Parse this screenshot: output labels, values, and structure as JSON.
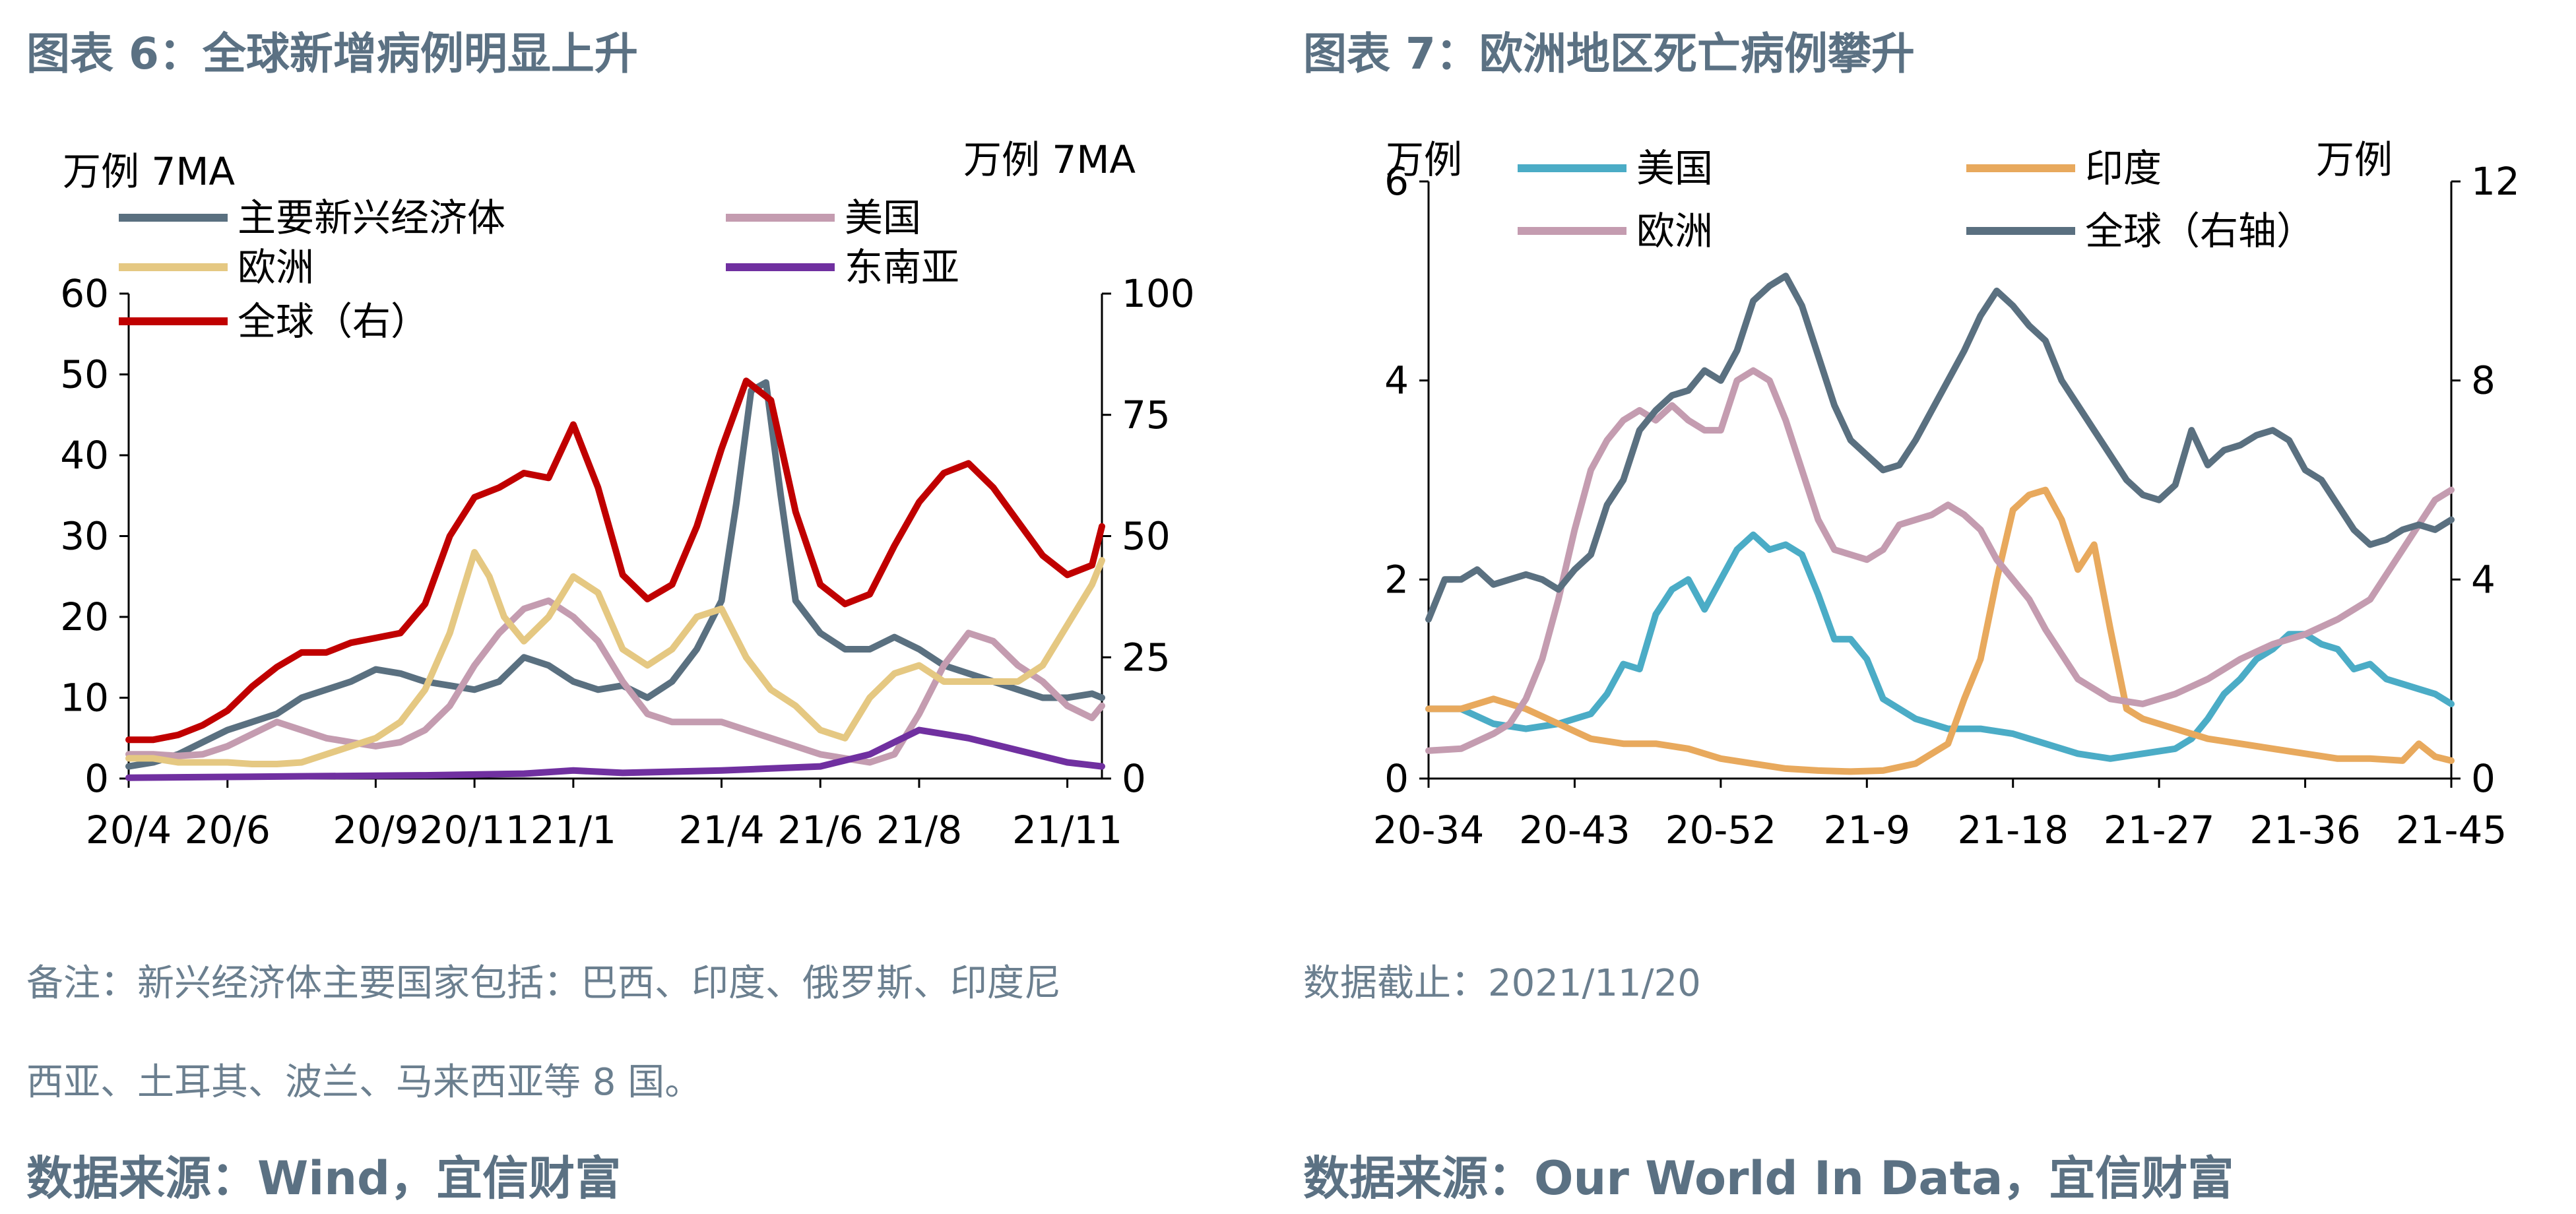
{
  "left": {
    "title": "图表 6：全球新增病例明显上升",
    "note_line1": "备注：新兴经济体主要国家包括：巴西、印度、俄罗斯、印度尼",
    "note_line2": "西亚、土耳其、波兰、马来西亚等 8 国。",
    "source": "数据来源：Wind，宜信财富"
  },
  "right": {
    "title": "图表 7：欧洲地区死亡病例攀升",
    "note": "数据截止：2021/11/20",
    "source": "数据来源：Our World In Data，宜信财富"
  },
  "chart_data": [
    {
      "type": "line",
      "left_unit": "万例 7MA",
      "right_unit": "万例 7MA",
      "ylim": [
        0,
        60
      ],
      "ylim_right": [
        0,
        100
      ],
      "yticks": [
        0,
        10,
        20,
        30,
        40,
        50,
        60
      ],
      "yticks_right": [
        0,
        25,
        50,
        75,
        100
      ],
      "xlim": [
        0,
        19.7
      ],
      "xticks": [
        {
          "label": "20/4",
          "pos": 0
        },
        {
          "label": "20/6",
          "pos": 2
        },
        {
          "label": "20/9",
          "pos": 5
        },
        {
          "label": "20/11",
          "pos": 7
        },
        {
          "label": "21/1",
          "pos": 9
        },
        {
          "label": "21/4",
          "pos": 12
        },
        {
          "label": "21/6",
          "pos": 14
        },
        {
          "label": "21/8",
          "pos": 16
        },
        {
          "label": "21/11",
          "pos": 19
        }
      ],
      "series": [
        {
          "name": "主要新兴经济体",
          "color": "#5a7080",
          "axis": "left",
          "x": [
            0,
            0.5,
            1,
            1.5,
            2,
            2.5,
            3,
            3.5,
            4,
            4.5,
            5,
            5.5,
            6,
            6.5,
            7,
            7.5,
            8,
            8.5,
            9,
            9.5,
            10,
            10.5,
            11,
            11.5,
            12,
            12.3,
            12.6,
            12.9,
            13.2,
            13.5,
            14,
            14.5,
            15,
            15.5,
            16,
            16.5,
            17,
            17.5,
            18,
            18.5,
            19,
            19.5,
            19.7
          ],
          "y": [
            1.5,
            2,
            3,
            4.5,
            6,
            7,
            8,
            10,
            11,
            12,
            13.5,
            13,
            12,
            11.5,
            11,
            12,
            15,
            14,
            12,
            11,
            11.5,
            10,
            12,
            16,
            22,
            34,
            48,
            49,
            35,
            22,
            18,
            16,
            16,
            17.5,
            16,
            14,
            13,
            12,
            11,
            10,
            10,
            10.5,
            10
          ]
        },
        {
          "name": "美国",
          "color": "#c49cb0",
          "axis": "left",
          "x": [
            0,
            0.5,
            1,
            1.5,
            2,
            2.5,
            3,
            3.5,
            4,
            4.5,
            5,
            5.5,
            6,
            6.5,
            7,
            7.5,
            8,
            8.5,
            9,
            9.5,
            10,
            10.5,
            11,
            11.5,
            12,
            12.5,
            13,
            13.5,
            14,
            14.5,
            15,
            15.5,
            16,
            16.5,
            17,
            17.5,
            18,
            18.5,
            19,
            19.5,
            19.7
          ],
          "y": [
            3,
            3,
            2.8,
            3,
            4,
            5.5,
            7,
            6,
            5,
            4.5,
            4,
            4.5,
            6,
            9,
            14,
            18,
            21,
            22,
            20,
            17,
            12,
            8,
            7,
            7,
            7,
            6,
            5,
            4,
            3,
            2.5,
            2,
            3,
            8,
            14,
            18,
            17,
            14,
            12,
            9,
            7.5,
            9
          ]
        },
        {
          "name": "欧洲",
          "color": "#e5c882",
          "axis": "left",
          "x": [
            0,
            0.5,
            1,
            1.5,
            2,
            2.5,
            3,
            3.5,
            4,
            4.5,
            5,
            5.5,
            6,
            6.5,
            7,
            7.3,
            7.6,
            8,
            8.5,
            9,
            9.5,
            10,
            10.5,
            11,
            11.5,
            12,
            12.5,
            13,
            13.5,
            14,
            14.5,
            15,
            15.5,
            16,
            16.5,
            17,
            17.5,
            18,
            18.5,
            19,
            19.5,
            19.7
          ],
          "y": [
            2.5,
            2.5,
            2,
            2,
            2,
            1.8,
            1.8,
            2,
            3,
            4,
            5,
            7,
            11,
            18,
            28,
            25,
            20,
            17,
            20,
            25,
            23,
            16,
            14,
            16,
            20,
            21,
            15,
            11,
            9,
            6,
            5,
            10,
            13,
            14,
            12,
            12,
            12,
            12,
            14,
            19,
            24,
            27
          ]
        },
        {
          "name": "东南亚",
          "color": "#7030a0",
          "axis": "left",
          "x": [
            0,
            2,
            4,
            6,
            8,
            9,
            10,
            12,
            14,
            15,
            15.5,
            16,
            16.5,
            17,
            18,
            19,
            19.7
          ],
          "y": [
            0.1,
            0.2,
            0.3,
            0.4,
            0.6,
            1,
            0.7,
            1,
            1.5,
            3,
            4.5,
            6,
            5.5,
            5,
            3.5,
            2,
            1.5
          ]
        },
        {
          "name": "全球（右）",
          "color": "#c00000",
          "axis": "right",
          "x": [
            0,
            0.5,
            1,
            1.5,
            2,
            2.5,
            3,
            3.5,
            4,
            4.5,
            5,
            5.5,
            6,
            6.5,
            7,
            7.5,
            8,
            8.5,
            9,
            9.5,
            10,
            10.5,
            11,
            11.5,
            12,
            12.5,
            13,
            13.5,
            14,
            14.5,
            15,
            15.5,
            16,
            16.5,
            17,
            17.5,
            18,
            18.5,
            19,
            19.5,
            19.7
          ],
          "y": [
            8,
            8,
            9,
            11,
            14,
            19,
            23,
            26,
            26,
            28,
            29,
            30,
            36,
            50,
            58,
            60,
            63,
            62,
            73,
            60,
            42,
            37,
            40,
            52,
            68,
            82,
            78,
            55,
            40,
            36,
            38,
            48,
            57,
            63,
            65,
            60,
            53,
            46,
            42,
            44,
            52
          ]
        }
      ]
    },
    {
      "type": "line",
      "left_unit": "万例",
      "right_unit": "万例",
      "ylim": [
        0,
        6
      ],
      "ylim_right": [
        0,
        12
      ],
      "yticks": [
        0,
        2,
        4,
        6
      ],
      "yticks_right": [
        0,
        4,
        8,
        12
      ],
      "xlim": [
        34,
        97
      ],
      "xticks": [
        {
          "label": "20-34",
          "pos": 34
        },
        {
          "label": "20-43",
          "pos": 43
        },
        {
          "label": "20-52",
          "pos": 52
        },
        {
          "label": "21-9",
          "pos": 61
        },
        {
          "label": "21-18",
          "pos": 70
        },
        {
          "label": "21-27",
          "pos": 79
        },
        {
          "label": "21-36",
          "pos": 88
        },
        {
          "label": "21-45",
          "pos": 97
        }
      ],
      "series": [
        {
          "name": "美国",
          "color": "#4bacc6",
          "axis": "left",
          "x": [
            34,
            36,
            38,
            40,
            42,
            43,
            44,
            45,
            46,
            47,
            48,
            49,
            50,
            51,
            52,
            53,
            54,
            55,
            56,
            57,
            58,
            59,
            60,
            61,
            62,
            63,
            64,
            65,
            66,
            68,
            70,
            72,
            74,
            76,
            78,
            80,
            81,
            82,
            83,
            84,
            85,
            86,
            87,
            88,
            89,
            90,
            91,
            92,
            93,
            94,
            95,
            96,
            97
          ],
          "y": [
            0.7,
            0.7,
            0.55,
            0.5,
            0.55,
            0.6,
            0.65,
            0.85,
            1.15,
            1.1,
            1.65,
            1.9,
            2.0,
            1.7,
            2.0,
            2.3,
            2.45,
            2.3,
            2.35,
            2.25,
            1.85,
            1.4,
            1.4,
            1.2,
            0.8,
            0.7,
            0.6,
            0.55,
            0.5,
            0.5,
            0.45,
            0.35,
            0.25,
            0.2,
            0.25,
            0.3,
            0.4,
            0.6,
            0.85,
            1.0,
            1.2,
            1.3,
            1.45,
            1.45,
            1.35,
            1.3,
            1.1,
            1.15,
            1.0,
            0.95,
            0.9,
            0.85,
            0.75
          ]
        },
        {
          "name": "印度",
          "color": "#e8a95d",
          "axis": "left",
          "x": [
            34,
            36,
            38,
            40,
            42,
            44,
            46,
            48,
            50,
            52,
            54,
            56,
            58,
            60,
            62,
            64,
            66,
            67,
            68,
            69,
            70,
            71,
            72,
            73,
            74,
            75,
            76,
            77,
            78,
            80,
            82,
            84,
            86,
            88,
            90,
            92,
            94,
            95,
            96,
            97
          ],
          "y": [
            0.7,
            0.7,
            0.8,
            0.7,
            0.55,
            0.4,
            0.35,
            0.35,
            0.3,
            0.2,
            0.15,
            0.1,
            0.08,
            0.07,
            0.08,
            0.15,
            0.35,
            0.8,
            1.2,
            2.0,
            2.7,
            2.85,
            2.9,
            2.6,
            2.1,
            2.35,
            1.5,
            0.7,
            0.6,
            0.5,
            0.4,
            0.35,
            0.3,
            0.25,
            0.2,
            0.2,
            0.18,
            0.35,
            0.22,
            0.18
          ]
        },
        {
          "name": "欧洲",
          "color": "#c49cb0",
          "axis": "left",
          "x": [
            34,
            36,
            38,
            39,
            40,
            41,
            42,
            43,
            44,
            45,
            46,
            47,
            48,
            49,
            50,
            51,
            52,
            53,
            54,
            55,
            56,
            57,
            58,
            59,
            60,
            61,
            62,
            63,
            64,
            65,
            66,
            67,
            68,
            69,
            70,
            71,
            72,
            74,
            76,
            78,
            80,
            82,
            84,
            86,
            88,
            90,
            92,
            94,
            96,
            97
          ],
          "y": [
            0.28,
            0.3,
            0.45,
            0.55,
            0.8,
            1.2,
            1.8,
            2.5,
            3.1,
            3.4,
            3.6,
            3.7,
            3.6,
            3.75,
            3.6,
            3.5,
            3.5,
            4.0,
            4.1,
            4.0,
            3.6,
            3.1,
            2.6,
            2.3,
            2.25,
            2.2,
            2.3,
            2.55,
            2.6,
            2.65,
            2.75,
            2.65,
            2.5,
            2.2,
            2.0,
            1.8,
            1.5,
            1.0,
            0.8,
            0.75,
            0.85,
            1.0,
            1.2,
            1.35,
            1.45,
            1.6,
            1.8,
            2.3,
            2.8,
            2.9
          ]
        },
        {
          "name": "全球（右轴）",
          "color": "#5a7080",
          "axis": "right",
          "x": [
            34,
            35,
            36,
            37,
            38,
            39,
            40,
            41,
            42,
            43,
            44,
            45,
            46,
            47,
            48,
            49,
            50,
            51,
            52,
            53,
            54,
            55,
            56,
            57,
            58,
            59,
            60,
            61,
            62,
            63,
            64,
            65,
            66,
            67,
            68,
            69,
            70,
            71,
            72,
            73,
            74,
            75,
            76,
            77,
            78,
            79,
            80,
            81,
            82,
            83,
            84,
            85,
            86,
            87,
            88,
            89,
            90,
            91,
            92,
            93,
            94,
            95,
            96,
            97
          ],
          "y": [
            3.2,
            4.0,
            4.0,
            4.2,
            3.9,
            4.0,
            4.1,
            4.0,
            3.8,
            4.2,
            4.5,
            5.5,
            6.0,
            7.0,
            7.4,
            7.7,
            7.8,
            8.2,
            8.0,
            8.6,
            9.6,
            9.9,
            10.1,
            9.5,
            8.5,
            7.5,
            6.8,
            6.5,
            6.2,
            6.3,
            6.8,
            7.4,
            8.0,
            8.6,
            9.3,
            9.8,
            9.5,
            9.1,
            8.8,
            8.0,
            7.5,
            7.0,
            6.5,
            6.0,
            5.7,
            5.6,
            5.9,
            7.0,
            6.3,
            6.6,
            6.7,
            6.9,
            7.0,
            6.8,
            6.2,
            6.0,
            5.5,
            5.0,
            4.7,
            4.8,
            5.0,
            5.1,
            5.0,
            5.2
          ]
        }
      ]
    }
  ]
}
